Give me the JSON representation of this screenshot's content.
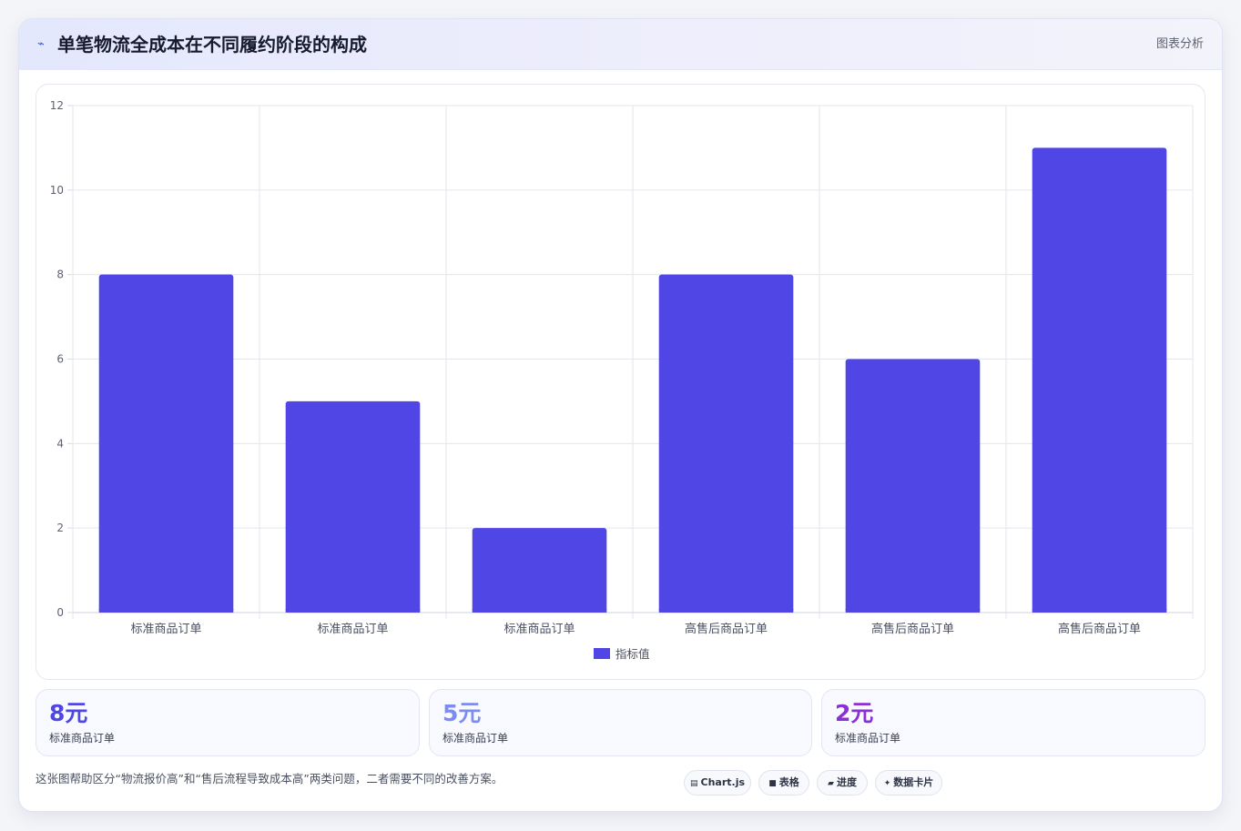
{
  "header": {
    "icon": "chart-line-icon",
    "title": "单笔物流全成本在不同履约阶段的构成",
    "tag": "图表分析"
  },
  "chart_data": {
    "type": "bar",
    "categories": [
      "标准商品订单",
      "标准商品订单",
      "标准商品订单",
      "高售后商品订单",
      "高售后商品订单",
      "高售后商品订单"
    ],
    "series": [
      {
        "name": "指标值",
        "values": [
          8,
          5,
          2,
          8,
          6,
          11
        ],
        "color": "#4f46e5"
      }
    ],
    "ylim": [
      0,
      12
    ],
    "yticks": [
      0,
      2,
      4,
      6,
      8,
      10,
      12
    ],
    "grid": true,
    "legend": "bottom"
  },
  "stats": [
    {
      "value": "8元",
      "label": "标准商品订单",
      "color": "#4f46e5"
    },
    {
      "value": "5元",
      "label": "标准商品订单",
      "color": "#7c8cf0"
    },
    {
      "value": "2元",
      "label": "标准商品订单",
      "color": "#8b2fd6"
    }
  ],
  "footnote": "这张图帮助区分“物流报价高”和“售后流程导致成本高”两类问题，二者需要不同的改善方案。",
  "chips": [
    {
      "icon": "chart-icon",
      "glyph": "▤",
      "label": "Chart.js"
    },
    {
      "icon": "table-icon",
      "glyph": "■",
      "label": "表格"
    },
    {
      "icon": "progress-icon",
      "glyph": "▰",
      "label": "进度"
    },
    {
      "icon": "card-icon",
      "glyph": "✦",
      "label": "数据卡片"
    }
  ]
}
